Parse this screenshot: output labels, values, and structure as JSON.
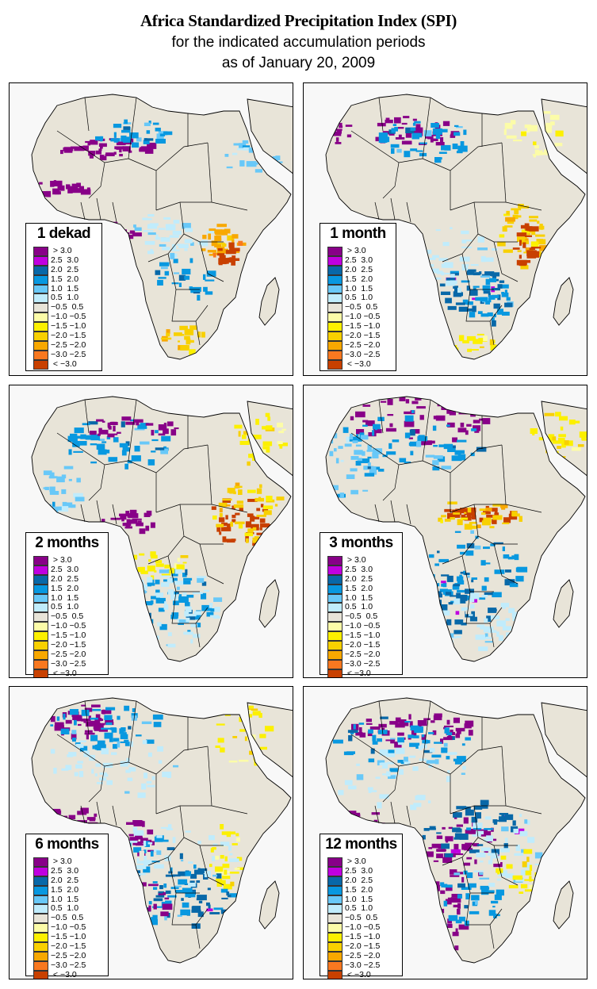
{
  "header": {
    "title": "Africa Standardized Precipitation Index (SPI)",
    "subtitle_line1": "for the indicated accumulation periods",
    "subtitle_line2": "as of January 20, 2009"
  },
  "legend_classes": [
    {
      "label": " > 3.0",
      "color": "#880088"
    },
    {
      "label": "2.5  3.0",
      "color": "#c000e0"
    },
    {
      "label": "2.0  2.5",
      "color": "#0868a8"
    },
    {
      "label": "1.5  2.0",
      "color": "#0898e0"
    },
    {
      "label": "1.0  1.5",
      "color": "#68c8f8"
    },
    {
      "label": "0.5  1.0",
      "color": "#c0ecfc"
    },
    {
      "label": "−0.5  0.5",
      "color": "#e8e4d8"
    },
    {
      "label": "−1.0 −0.5",
      "color": "#fcfca8"
    },
    {
      "label": "−1.5 −1.0",
      "color": "#fcf000"
    },
    {
      "label": "−2.0 −1.5",
      "color": "#f8d000"
    },
    {
      "label": "−2.5 −2.0",
      "color": "#f8a800"
    },
    {
      "label": "−3.0 −2.5",
      "color": "#f87820"
    },
    {
      "label": " < −3.0",
      "color": "#c84000"
    }
  ],
  "panels": [
    {
      "label": "1 dekad",
      "period": "1 dekad",
      "dominant_pattern": "mostly near-normal; wet streaks across Sahara; dry in Tanzania"
    },
    {
      "label": "1 month",
      "period": "1 month",
      "dominant_pattern": "wet north Africa and southern Africa; dry East Africa"
    },
    {
      "label": "2 months",
      "period": "2 months",
      "dominant_pattern": "wet Sahara and Congo; severe dry Horn of Africa"
    },
    {
      "label": "3 months",
      "period": "3 months",
      "dominant_pattern": "wet widespread; dry belt across Sudan"
    },
    {
      "label": "6 months",
      "period": "6 months",
      "dominant_pattern": "wet across most of continent"
    },
    {
      "label": "12 months",
      "period": "12 months",
      "dominant_pattern": "very wet central Africa and Namibia"
    }
  ],
  "colors": {
    "land_normal": "#e8e4d8",
    "ocean": "#f8f8f8",
    "border": "#000000"
  }
}
